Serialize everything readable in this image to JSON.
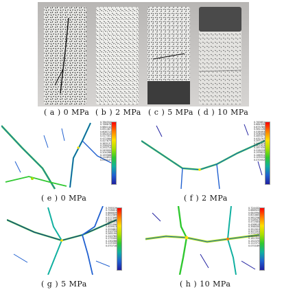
{
  "photos": [
    {
      "caption": "( a ) 0 MPa"
    },
    {
      "caption": "( b ) 2 MPa"
    },
    {
      "caption": "( c ) 5 MPa"
    },
    {
      "caption": "( d ) 10 MPa"
    }
  ],
  "panels": [
    {
      "caption": "( e ) 0 MPa",
      "scale": [
        "0.784554",
        "0.768678",
        "0.684142",
        "0.651467",
        "0.608712",
        "0.582014",
        "0.517301",
        "0.472584",
        "0.427870",
        "0.383137",
        "0.338424",
        "0.293714",
        "0.249000",
        "0.204286",
        "0.159566",
        "0.114853",
        "0.070147"
      ]
    },
    {
      "caption": "( f ) 2 MPa",
      "scale": [
        "0.763651",
        "0.684330",
        "0.675780",
        "0.581126",
        "0.538493",
        "0.506458",
        "0.465527",
        "0.432797",
        "0.397130",
        "0.341323",
        "0.307923",
        "0.287535",
        "0.228233",
        "0.193622",
        "0.166931",
        "0.109533",
        "0.070552"
      ]
    },
    {
      "caption": "( g ) 5 MPa",
      "scale": [
        "0.795519",
        "0.708801",
        "0.666859",
        "0.622089",
        "0.577398",
        "0.532721",
        "0.488043",
        "0.443396",
        "0.409913",
        "0.355882",
        "0.310759",
        "0.265190",
        "0.220780",
        "0.175500",
        "0.130288",
        "0.115340",
        "0.070718"
      ]
    },
    {
      "caption": "( h ) 10 MPa",
      "scale": [
        "0.724432",
        "0.688923",
        "0.644994",
        "0.601865",
        "0.562256",
        "0.518507",
        "0.472583",
        "0.438813",
        "0.398430",
        "0.351901",
        "0.307291",
        "0.270722",
        "0.225322",
        "0.181350",
        "0.152375",
        "0.112371",
        "0.070189"
      ]
    }
  ],
  "colors": {
    "colormap": [
      "#ff0000",
      "#ff7a00",
      "#ffe000",
      "#a8e000",
      "#30c830",
      "#10b0a0",
      "#2060d0",
      "#2020a0"
    ]
  }
}
